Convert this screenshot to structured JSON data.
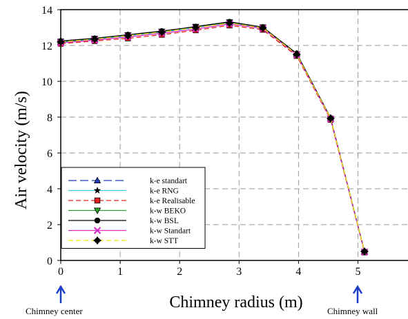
{
  "chart_data": {
    "type": "line",
    "title": "",
    "xlabel": "Chimney radius (m)",
    "ylabel": "Air velocity (m/s)",
    "xlim": [
      0,
      6
    ],
    "ylim": [
      0,
      14
    ],
    "x_ticks": [
      "0",
      "1",
      "2",
      "3",
      "4",
      "5",
      "6"
    ],
    "y_ticks": [
      "0",
      "2",
      "4",
      "6",
      "8",
      "10",
      "12",
      "14"
    ],
    "grid": true,
    "legend_position": "bottom-left",
    "annotations": {
      "left": "Chimney center",
      "right": "Chimney wall"
    },
    "arrow_color": "#1a3cc8",
    "series": [
      {
        "name": "k-e standart",
        "color": "#1f3bc0",
        "dash": "long-dash",
        "marker": "triangle-up",
        "x": [
          0,
          0.57,
          1.13,
          1.7,
          2.27,
          2.84,
          3.4,
          3.97,
          4.54,
          5.11
        ],
        "y": [
          12.2,
          12.35,
          12.55,
          12.75,
          13.0,
          13.28,
          13.0,
          11.55,
          7.95,
          0.5
        ]
      },
      {
        "name": "k-e RNG",
        "color": "#33c6e0",
        "dash": "solid",
        "marker": "star",
        "x": [
          0,
          0.57,
          1.13,
          1.7,
          2.27,
          2.84,
          3.4,
          3.97,
          4.54,
          5.11
        ],
        "y": [
          12.2,
          12.35,
          12.55,
          12.75,
          13.0,
          13.3,
          13.0,
          11.55,
          7.95,
          0.5
        ]
      },
      {
        "name": "k-e Realisable",
        "color": "#e02020",
        "dash": "dashed",
        "marker": "square",
        "x": [
          0,
          0.57,
          1.13,
          1.7,
          2.27,
          2.84,
          3.4,
          3.97,
          4.54,
          5.11
        ],
        "y": [
          12.1,
          12.25,
          12.4,
          12.6,
          12.85,
          13.12,
          12.88,
          11.42,
          7.85,
          0.45
        ]
      },
      {
        "name": "k-w BEKO",
        "color": "#2ca02c",
        "dash": "solid",
        "marker": "triangle-down",
        "x": [
          0,
          0.57,
          1.13,
          1.7,
          2.27,
          2.84,
          3.4,
          3.97,
          4.54,
          5.11
        ],
        "y": [
          12.22,
          12.38,
          12.58,
          12.78,
          13.05,
          13.3,
          13.02,
          11.52,
          7.92,
          0.48
        ]
      },
      {
        "name": "k-w BSL",
        "color": "#000000",
        "dash": "solid",
        "marker": "circle",
        "x": [
          0,
          0.57,
          1.13,
          1.7,
          2.27,
          2.84,
          3.4,
          3.97,
          4.54,
          5.11
        ],
        "y": [
          12.25,
          12.4,
          12.6,
          12.8,
          13.05,
          13.32,
          13.02,
          11.55,
          7.95,
          0.5
        ]
      },
      {
        "name": "k-w Standart",
        "color": "#d62cc8",
        "dash": "solid",
        "marker": "x",
        "x": [
          0,
          0.57,
          1.13,
          1.7,
          2.27,
          2.84,
          3.4,
          3.97,
          4.54,
          5.11
        ],
        "y": [
          12.15,
          12.3,
          12.48,
          12.68,
          12.92,
          13.2,
          12.95,
          11.48,
          7.9,
          0.47
        ]
      },
      {
        "name": "k-w STT",
        "color": "#f2e60a",
        "dash": "dashed",
        "marker": "plus",
        "x": [
          0,
          0.57,
          1.13,
          1.7,
          2.27,
          2.84,
          3.4,
          3.97,
          4.54,
          5.11
        ],
        "y": [
          12.2,
          12.35,
          12.55,
          12.75,
          13.0,
          13.25,
          12.98,
          11.5,
          7.93,
          0.5
        ]
      }
    ]
  }
}
